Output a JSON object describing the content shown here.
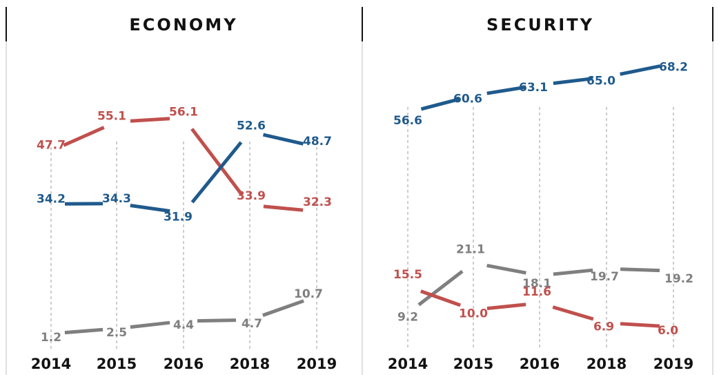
{
  "chart_data": [
    {
      "type": "line",
      "title": "ECONOMY",
      "xlabel": "",
      "ylabel": "",
      "categories": [
        "2014",
        "2015",
        "2016",
        "2018",
        "2019"
      ],
      "series": [
        {
          "color": "#c0504d",
          "values": [
            47.7,
            55.1,
            56.1,
            33.9,
            32.3
          ],
          "labels": [
            "47.7",
            "55.1",
            "56.1",
            "33.9",
            "32.3"
          ]
        },
        {
          "color": "#1f5a8c",
          "values": [
            34.2,
            34.3,
            31.9,
            52.6,
            48.7
          ],
          "labels": [
            "34.2",
            "34.3",
            "31.9",
            "52.6",
            "48.7"
          ]
        },
        {
          "color": "#7f7f7f",
          "values": [
            1.2,
            2.5,
            4.4,
            4.7,
            10.7
          ],
          "labels": [
            "1.2",
            "2.5",
            "4.4",
            "4.7",
            "10.7"
          ]
        }
      ],
      "ylim": [
        0,
        65
      ],
      "grid": "vertical dashed",
      "legend": "none"
    },
    {
      "type": "line",
      "title": "SECURITY",
      "xlabel": "",
      "ylabel": "",
      "categories": [
        "2014",
        "2015",
        "2016",
        "2018",
        "2019"
      ],
      "series": [
        {
          "color": "#1f5a8c",
          "values": [
            56.6,
            60.6,
            63.1,
            65.0,
            68.2
          ],
          "labels": [
            "56.6",
            "60.6",
            "63.1",
            "65.0",
            "68.2"
          ]
        },
        {
          "color": "#7f7f7f",
          "values": [
            9.2,
            21.1,
            18.1,
            19.7,
            19.2
          ],
          "labels": [
            "9.2",
            "21.1",
            "18.1",
            "19.7",
            "19.2"
          ]
        },
        {
          "color": "#c0504d",
          "values": [
            15.5,
            10.0,
            11.6,
            6.9,
            6.0
          ],
          "labels": [
            "15.5",
            "10.0",
            "11.6",
            "6.9",
            "6.0"
          ]
        }
      ],
      "ylim": [
        0,
        75
      ],
      "grid": "vertical dashed",
      "legend": "none"
    }
  ]
}
